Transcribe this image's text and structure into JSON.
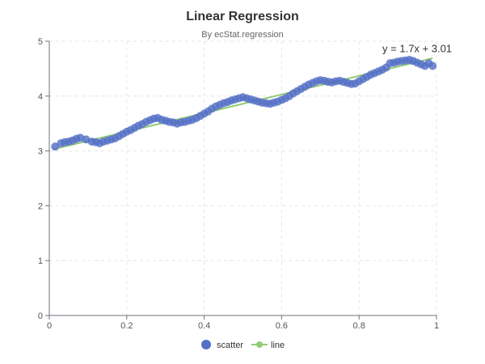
{
  "chart_data": {
    "type": "scatter",
    "title": "Linear Regression",
    "subtitle": "By ecStat.regression",
    "xlim": [
      0,
      1
    ],
    "ylim": [
      0,
      5
    ],
    "x_ticks": [
      "0",
      "0.2",
      "0.4",
      "0.6",
      "0.8",
      "1"
    ],
    "y_ticks": [
      "0",
      "1",
      "2",
      "3",
      "4",
      "5"
    ],
    "grid": true,
    "legend_position": "bottom",
    "colors": {
      "scatter": "#5470c6",
      "line": "#91cc75"
    },
    "series": [
      {
        "name": "scatter",
        "type": "scatter",
        "points": [
          [
            0.015,
            3.08
          ],
          [
            0.03,
            3.14
          ],
          [
            0.04,
            3.16
          ],
          [
            0.05,
            3.17
          ],
          [
            0.06,
            3.19
          ],
          [
            0.07,
            3.22
          ],
          [
            0.08,
            3.24
          ],
          [
            0.095,
            3.21
          ],
          [
            0.11,
            3.17
          ],
          [
            0.12,
            3.16
          ],
          [
            0.13,
            3.14
          ],
          [
            0.14,
            3.17
          ],
          [
            0.15,
            3.19
          ],
          [
            0.16,
            3.21
          ],
          [
            0.17,
            3.23
          ],
          [
            0.18,
            3.27
          ],
          [
            0.19,
            3.31
          ],
          [
            0.2,
            3.35
          ],
          [
            0.21,
            3.38
          ],
          [
            0.22,
            3.42
          ],
          [
            0.23,
            3.46
          ],
          [
            0.24,
            3.49
          ],
          [
            0.25,
            3.53
          ],
          [
            0.26,
            3.56
          ],
          [
            0.27,
            3.59
          ],
          [
            0.28,
            3.6
          ],
          [
            0.29,
            3.57
          ],
          [
            0.3,
            3.55
          ],
          [
            0.31,
            3.53
          ],
          [
            0.32,
            3.52
          ],
          [
            0.33,
            3.5
          ],
          [
            0.34,
            3.52
          ],
          [
            0.35,
            3.53
          ],
          [
            0.36,
            3.55
          ],
          [
            0.37,
            3.57
          ],
          [
            0.38,
            3.6
          ],
          [
            0.39,
            3.64
          ],
          [
            0.4,
            3.68
          ],
          [
            0.41,
            3.72
          ],
          [
            0.42,
            3.77
          ],
          [
            0.43,
            3.81
          ],
          [
            0.44,
            3.84
          ],
          [
            0.45,
            3.87
          ],
          [
            0.46,
            3.89
          ],
          [
            0.47,
            3.92
          ],
          [
            0.48,
            3.94
          ],
          [
            0.49,
            3.96
          ],
          [
            0.5,
            3.98
          ],
          [
            0.51,
            3.96
          ],
          [
            0.52,
            3.94
          ],
          [
            0.53,
            3.92
          ],
          [
            0.54,
            3.9
          ],
          [
            0.55,
            3.88
          ],
          [
            0.56,
            3.87
          ],
          [
            0.57,
            3.86
          ],
          [
            0.58,
            3.88
          ],
          [
            0.59,
            3.9
          ],
          [
            0.6,
            3.93
          ],
          [
            0.61,
            3.96
          ],
          [
            0.62,
            4.0
          ],
          [
            0.63,
            4.05
          ],
          [
            0.64,
            4.09
          ],
          [
            0.65,
            4.13
          ],
          [
            0.66,
            4.17
          ],
          [
            0.67,
            4.21
          ],
          [
            0.68,
            4.24
          ],
          [
            0.69,
            4.27
          ],
          [
            0.7,
            4.29
          ],
          [
            0.71,
            4.28
          ],
          [
            0.72,
            4.26
          ],
          [
            0.73,
            4.25
          ],
          [
            0.74,
            4.27
          ],
          [
            0.75,
            4.28
          ],
          [
            0.76,
            4.26
          ],
          [
            0.77,
            4.24
          ],
          [
            0.78,
            4.22
          ],
          [
            0.79,
            4.23
          ],
          [
            0.8,
            4.27
          ],
          [
            0.81,
            4.31
          ],
          [
            0.82,
            4.35
          ],
          [
            0.83,
            4.39
          ],
          [
            0.84,
            4.42
          ],
          [
            0.85,
            4.45
          ],
          [
            0.86,
            4.48
          ],
          [
            0.87,
            4.52
          ],
          [
            0.88,
            4.6
          ],
          [
            0.89,
            4.61
          ],
          [
            0.9,
            4.63
          ],
          [
            0.91,
            4.64
          ],
          [
            0.92,
            4.65
          ],
          [
            0.93,
            4.66
          ],
          [
            0.94,
            4.64
          ],
          [
            0.95,
            4.61
          ],
          [
            0.96,
            4.58
          ],
          [
            0.97,
            4.55
          ],
          [
            0.98,
            4.6
          ],
          [
            0.99,
            4.55
          ]
        ]
      },
      {
        "name": "line",
        "type": "line",
        "points": [
          [
            0.01,
            3.03
          ],
          [
            0.99,
            4.69
          ]
        ]
      }
    ],
    "annotations": [
      {
        "text": "y = 1.7x + 3.01",
        "x": 0.95,
        "y": 4.8
      }
    ]
  }
}
